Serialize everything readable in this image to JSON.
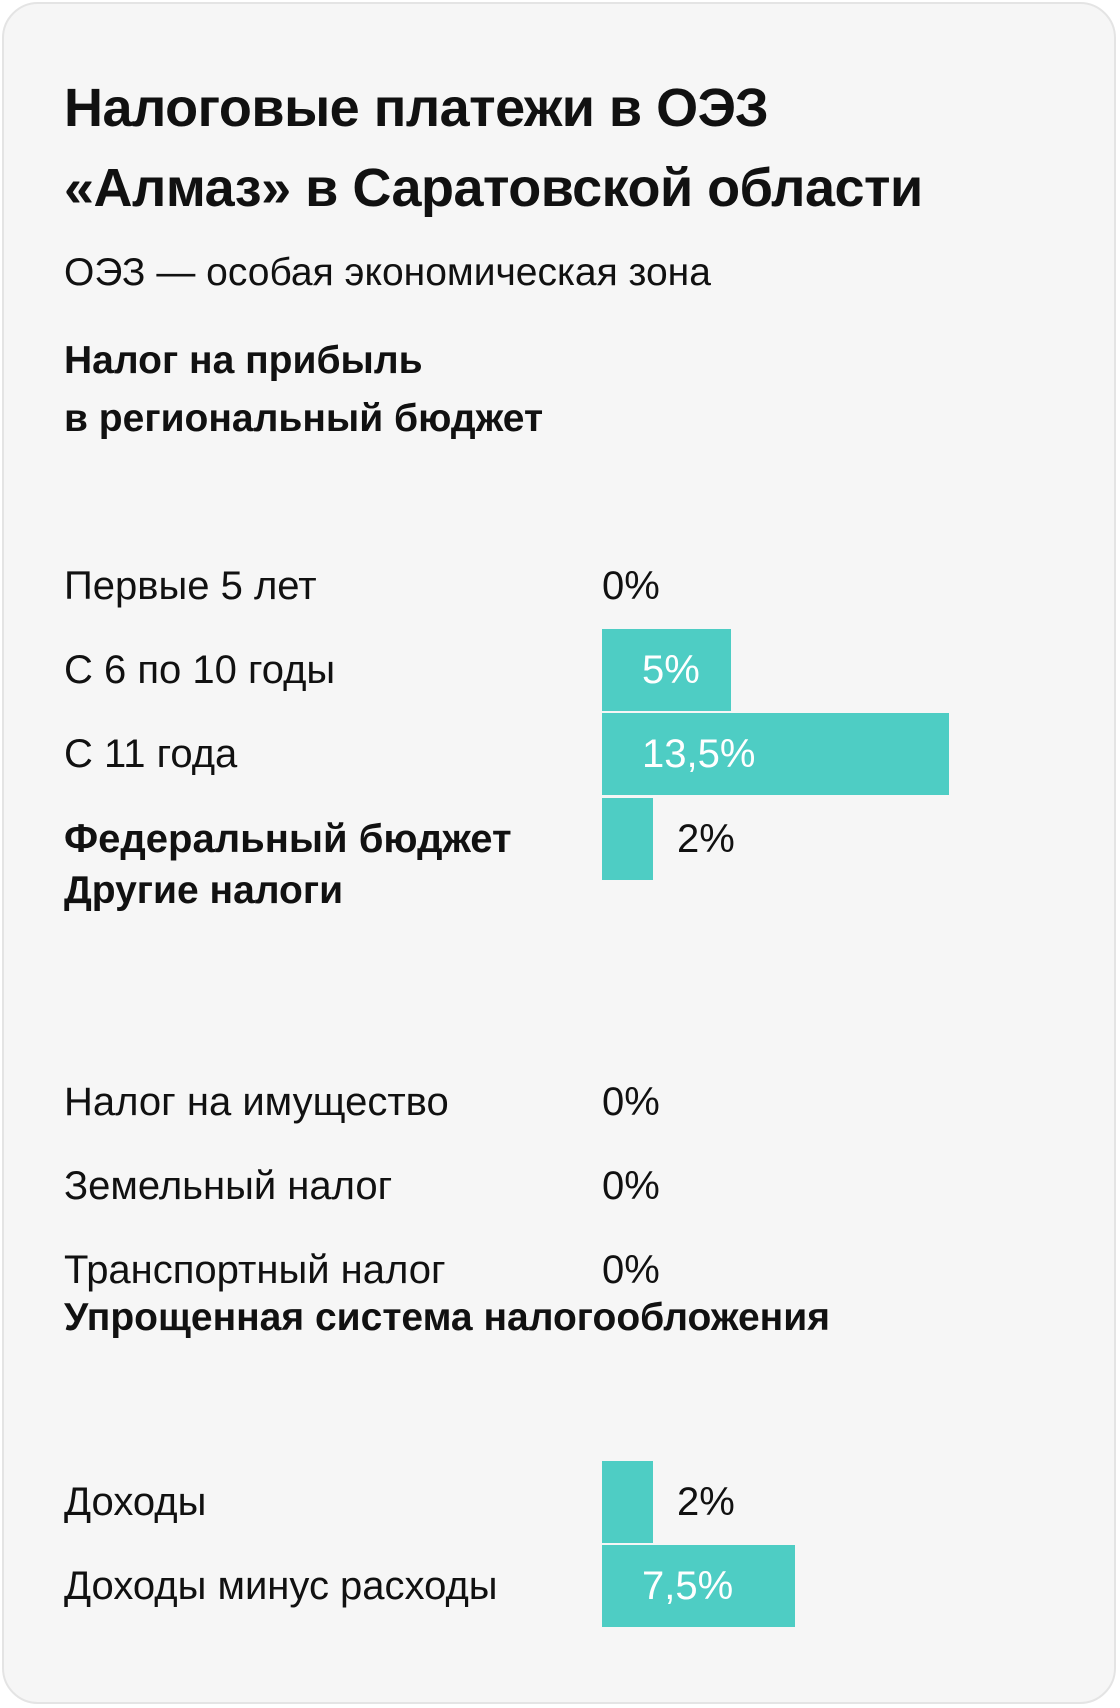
{
  "title_lines": [
    "Налоговые платежи в ОЭЗ",
    "«Алмаз» в Саратовской области"
  ],
  "subtitle": "ОЭЗ — особая экономическая зона",
  "bar_color": "#4ecdc4",
  "sections": {
    "profit_tax": {
      "title_lines": [
        "Налог на прибыль",
        "в региональный бюджет"
      ]
    },
    "other_taxes": {
      "title": "Другие налоги"
    },
    "simplified": {
      "title": "Упрощенная система налогообложения"
    }
  },
  "chart_data": {
    "type": "bar",
    "orientation": "horizontal",
    "unit": "%",
    "xlim": [
      0,
      15
    ],
    "rows": [
      {
        "label": "Первые 5 лет",
        "value": 0,
        "display": "0%",
        "section": "profit_tax"
      },
      {
        "label": "С 6 по 10 годы",
        "value": 5,
        "display": "5%",
        "section": "profit_tax"
      },
      {
        "label": "С 11 года",
        "value": 13.5,
        "display": "13,5%",
        "section": "profit_tax"
      },
      {
        "label": "Федеральный бюджет",
        "value": 2,
        "display": "2%",
        "section": "federal",
        "bold": true
      },
      {
        "label": "Налог на имущество",
        "value": 0,
        "display": "0%",
        "section": "other_taxes"
      },
      {
        "label": "Земельный налог",
        "value": 0,
        "display": "0%",
        "section": "other_taxes"
      },
      {
        "label": "Транспортный налог",
        "value": 0,
        "display": "0%",
        "section": "other_taxes"
      },
      {
        "label": "Доходы",
        "value": 2,
        "display": "2%",
        "section": "simplified"
      },
      {
        "label": "Доходы минус расходы",
        "value": 7.5,
        "display": "7,5%",
        "section": "simplified"
      }
    ]
  }
}
